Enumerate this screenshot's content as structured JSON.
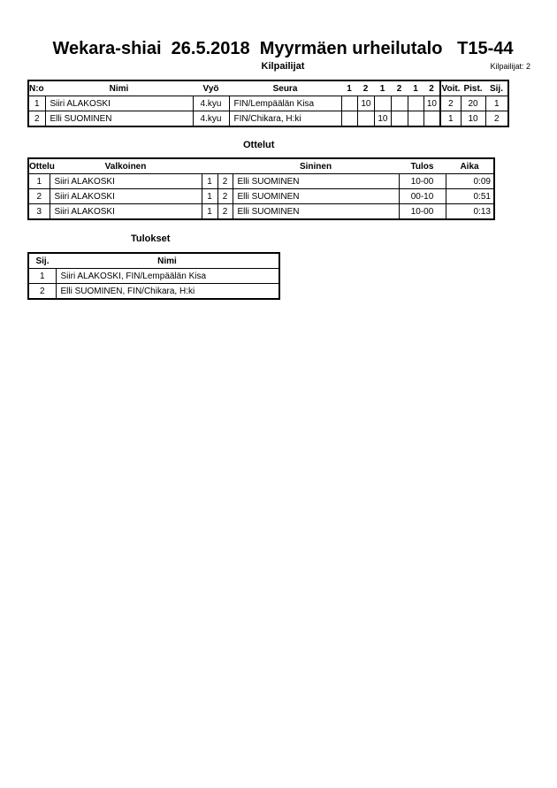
{
  "title": "Wekara-shiai  26.5.2018  Myyrmäen urheilutalo   T15-44",
  "competitors": {
    "heading": "Kilpailijat",
    "count_label": "Kilpailijat: 2",
    "headers": [
      "N:o",
      "Nimi",
      "Vyö",
      "Seura",
      "1",
      "2",
      "1",
      "2",
      "1",
      "2",
      "Voit.",
      "Pist.",
      "Sij."
    ],
    "rows": [
      {
        "no": "1",
        "name": "Siiri ALAKOSKI",
        "belt": "4.kyu",
        "club": "FIN/Lempäälän Kisa",
        "scores": [
          "",
          "10",
          "",
          "",
          "",
          "10"
        ],
        "wins": "2",
        "points": "20",
        "rank": "1"
      },
      {
        "no": "2",
        "name": "Elli SUOMINEN",
        "belt": "4.kyu",
        "club": "FIN/Chikara, H:ki",
        "scores": [
          "",
          "",
          "10",
          "",
          "",
          ""
        ],
        "wins": "1",
        "points": "10",
        "rank": "2"
      }
    ]
  },
  "matches": {
    "heading": "Ottelut",
    "headers": [
      "Ottelu",
      "Valkoinen",
      "Sininen",
      "Tulos",
      "Aika"
    ],
    "rows": [
      {
        "no": "1",
        "white": "Siiri ALAKOSKI",
        "w": "1",
        "b": "2",
        "blue": "Elli SUOMINEN",
        "result": "10-00",
        "time": "0:09"
      },
      {
        "no": "2",
        "white": "Siiri ALAKOSKI",
        "w": "1",
        "b": "2",
        "blue": "Elli SUOMINEN",
        "result": "00-10",
        "time": "0:51"
      },
      {
        "no": "3",
        "white": "Siiri ALAKOSKI",
        "w": "1",
        "b": "2",
        "blue": "Elli SUOMINEN",
        "result": "10-00",
        "time": "0:13"
      }
    ]
  },
  "results": {
    "heading": "Tulokset",
    "headers": [
      "Sij.",
      "Nimi"
    ],
    "rows": [
      {
        "rank": "1",
        "name": "Siiri ALAKOSKI, FIN/Lempäälän Kisa"
      },
      {
        "rank": "2",
        "name": "Elli SUOMINEN, FIN/Chikara, H:ki"
      }
    ]
  }
}
